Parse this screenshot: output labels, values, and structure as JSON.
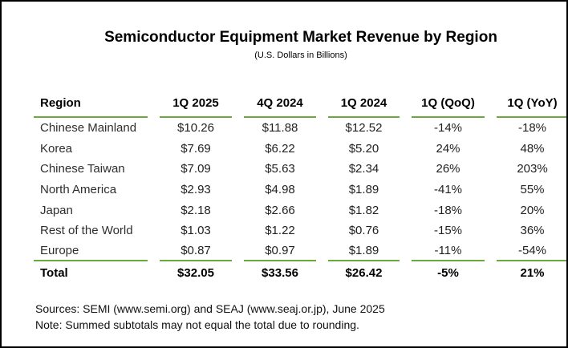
{
  "title": "Semiconductor Equipment Market Revenue by Region",
  "subtitle": "(U.S. Dollars in Billions)",
  "colors": {
    "accent_green": "#6aa93c",
    "background": "#ffffff",
    "border": "#000000"
  },
  "chart_data": {
    "type": "table",
    "title": "Semiconductor Equipment Market Revenue by Region",
    "subtitle": "(U.S. Dollars in Billions)",
    "columns": [
      "Region",
      "1Q 2025",
      "4Q 2024",
      "1Q 2024",
      "1Q (QoQ)",
      "1Q (YoY)"
    ],
    "rows": [
      [
        "Chinese Mainland",
        "$10.26",
        "$11.88",
        "$12.52",
        "-14%",
        "-18%"
      ],
      [
        "Korea",
        "$7.69",
        "$6.22",
        "$5.20",
        "24%",
        "48%"
      ],
      [
        "Chinese Taiwan",
        "$7.09",
        "$5.63",
        "$2.34",
        "26%",
        "203%"
      ],
      [
        "North America",
        "$2.93",
        "$4.98",
        "$1.89",
        "-41%",
        "55%"
      ],
      [
        "Japan",
        "$2.18",
        "$2.66",
        "$1.82",
        "-18%",
        "20%"
      ],
      [
        "Rest of the World",
        "$1.03",
        "$1.22",
        "$0.76",
        "-15%",
        "36%"
      ],
      [
        "Europe",
        "$0.87",
        "$0.97",
        "$1.89",
        "-11%",
        "-54%"
      ]
    ],
    "total_row": [
      "Total",
      "$32.05",
      "$33.56",
      "$26.42",
      "-5%",
      "21%"
    ],
    "units": "U.S. Dollars in Billions"
  },
  "footer": {
    "sources": "Sources: SEMI (www.semi.org) and SEAJ (www.seaj.or.jp), June 2025",
    "note": "Note: Summed subtotals may not equal the total due to rounding."
  }
}
